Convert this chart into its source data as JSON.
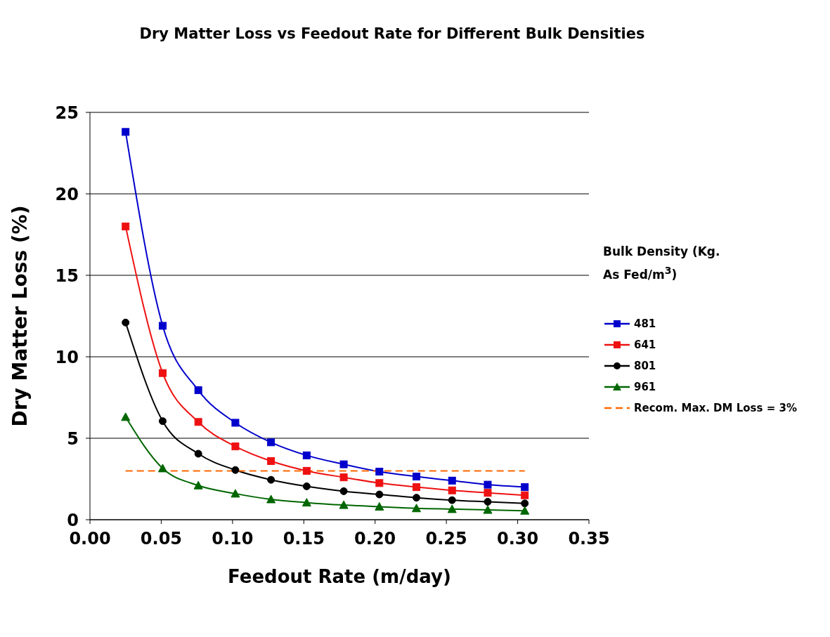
{
  "chart_data": {
    "type": "line",
    "title": "Dry Matter Loss vs Feedout Rate for Different Bulk Densities",
    "xlabel": "Feedout Rate (m/day)",
    "ylabel": "Dry Matter Loss (%)",
    "legend_title": "Bulk Density (Kg. As Fed/m$^{3}$)",
    "x": [
      0.025,
      0.051,
      0.076,
      0.102,
      0.127,
      0.152,
      0.178,
      0.203,
      0.229,
      0.254,
      0.279,
      0.305
    ],
    "series": [
      {
        "name": "481",
        "color": "#0000cc",
        "marker": "square",
        "values": [
          23.8,
          11.9,
          7.95,
          5.95,
          4.75,
          3.95,
          3.4,
          2.95,
          2.65,
          2.4,
          2.15,
          2.0
        ]
      },
      {
        "name": "641",
        "color": "#ee1111",
        "marker": "square",
        "values": [
          18,
          9,
          6,
          4.5,
          3.6,
          3.0,
          2.6,
          2.25,
          2.0,
          1.8,
          1.65,
          1.5
        ]
      },
      {
        "name": "801",
        "color": "#000000",
        "marker": "circle",
        "values": [
          12.1,
          6.05,
          4.05,
          3.05,
          2.45,
          2.05,
          1.75,
          1.55,
          1.35,
          1.2,
          1.1,
          1.0
        ]
      },
      {
        "name": "961",
        "color": "#006600",
        "marker": "triangle",
        "values": [
          6.3,
          3.15,
          2.1,
          1.6,
          1.25,
          1.05,
          0.9,
          0.8,
          0.7,
          0.65,
          0.6,
          0.55
        ]
      },
      {
        "name": "Recom. Max. DM Loss = 3%",
        "color": "#ff6600",
        "marker": "none",
        "line_style": "dashed",
        "values": [
          3,
          3,
          3,
          3,
          3,
          3,
          3,
          3,
          3,
          3,
          3,
          3
        ]
      }
    ],
    "xlim": [
      0,
      0.35
    ],
    "xticks": [
      {
        "value": 0,
        "label": "0.00"
      },
      {
        "value": 0.05,
        "label": "0.05"
      },
      {
        "value": 0.1,
        "label": "0.10"
      },
      {
        "value": 0.15,
        "label": "0.15"
      },
      {
        "value": 0.2,
        "label": "0.20"
      },
      {
        "value": 0.25,
        "label": "0.25"
      },
      {
        "value": 0.3,
        "label": "0.30"
      },
      {
        "value": 0.35,
        "label": "0.35"
      }
    ],
    "ylim": [
      0,
      25
    ],
    "yticks": [
      0,
      5,
      10,
      15,
      20,
      25
    ],
    "grid": "y",
    "legend": "right"
  }
}
